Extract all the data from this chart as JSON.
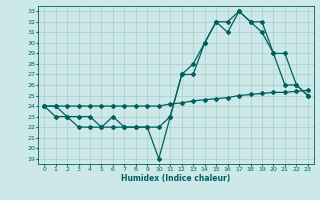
{
  "xlabel": "Humidex (Indice chaleur)",
  "background_color": "#cce8e8",
  "grid_color": "#b0d0d0",
  "line_color": "#006060",
  "xlim": [
    -0.5,
    23.5
  ],
  "ylim": [
    18.5,
    33.5
  ],
  "xticks": [
    0,
    1,
    2,
    3,
    4,
    5,
    6,
    7,
    8,
    9,
    10,
    11,
    12,
    13,
    14,
    15,
    16,
    17,
    18,
    19,
    20,
    21,
    22,
    23
  ],
  "yticks": [
    19,
    20,
    21,
    22,
    23,
    24,
    25,
    26,
    27,
    28,
    29,
    30,
    31,
    32,
    33
  ],
  "line1_x": [
    0,
    1,
    2,
    3,
    4,
    5,
    6,
    7,
    8,
    9,
    10,
    11,
    12,
    13,
    14,
    15,
    16,
    17,
    18,
    19,
    20,
    21,
    22,
    23
  ],
  "line1_y": [
    24.0,
    24.0,
    24.0,
    24.0,
    24.0,
    24.0,
    24.0,
    24.0,
    24.0,
    24.0,
    24.0,
    24.2,
    24.3,
    24.5,
    24.6,
    24.7,
    24.8,
    25.0,
    25.1,
    25.2,
    25.3,
    25.3,
    25.4,
    25.5
  ],
  "line2_x": [
    0,
    1,
    2,
    3,
    4,
    5,
    6,
    7,
    8,
    9,
    10,
    11,
    12,
    13,
    14,
    15,
    16,
    17,
    18,
    19,
    20,
    21,
    22,
    23
  ],
  "line2_y": [
    24,
    24,
    23,
    23,
    23,
    22,
    23,
    22,
    22,
    22,
    19,
    23,
    27,
    27,
    30,
    32,
    31,
    33,
    32,
    32,
    29,
    29,
    26,
    25
  ],
  "line3_x": [
    0,
    1,
    2,
    3,
    4,
    5,
    6,
    7,
    8,
    9,
    10,
    11,
    12,
    13,
    14,
    15,
    16,
    17,
    18,
    19,
    20,
    21,
    22,
    23
  ],
  "line3_y": [
    24,
    23,
    23,
    22,
    22,
    22,
    22,
    22,
    22,
    22,
    22,
    23,
    27,
    28,
    30,
    32,
    32,
    33,
    32,
    31,
    29,
    26,
    26,
    25
  ]
}
